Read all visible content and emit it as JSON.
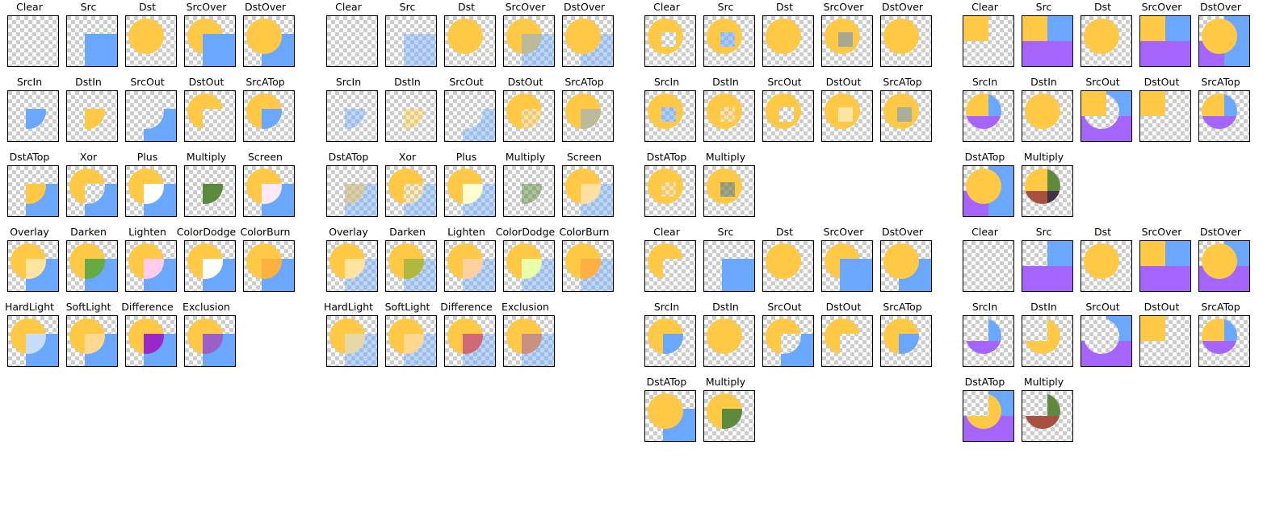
{
  "colors": {
    "dst_circle": "#FFC845",
    "src_square": "#6AA8FF",
    "purple": "#A664FF",
    "checker_light": "#FFFFFF",
    "checker_dark": "#CCCCCC",
    "border": "#000000"
  },
  "panels": [
    {
      "id": "panel-1",
      "labels": [
        "Clear",
        "Src",
        "Dst",
        "SrcOver",
        "DstOver",
        "SrcIn",
        "DstIn",
        "SrcOut",
        "DstOut",
        "SrcATop",
        "DstATop",
        "Xor",
        "Plus",
        "Multiply",
        "Screen",
        "Overlay",
        "Darken",
        "Lighten",
        "ColorDodge",
        "ColorBurn",
        "HardLight",
        "SoftLight",
        "Difference",
        "Exclusion"
      ]
    },
    {
      "id": "panel-2",
      "labels": [
        "Clear",
        "Src",
        "Dst",
        "SrcOver",
        "DstOver",
        "SrcIn",
        "DstIn",
        "SrcOut",
        "DstOut",
        "SrcATop",
        "DstATop",
        "Xor",
        "Plus",
        "Multiply",
        "Screen",
        "Overlay",
        "Darken",
        "Lighten",
        "ColorDodge",
        "ColorBurn",
        "HardLight",
        "SoftLight",
        "Difference",
        "Exclusion"
      ]
    },
    {
      "id": "panel-3a",
      "labels": [
        "Clear",
        "Src",
        "Dst",
        "SrcOver",
        "DstOver",
        "SrcIn",
        "DstIn",
        "SrcOut",
        "DstOut",
        "SrcATop",
        "DstATop",
        "Multiply"
      ]
    },
    {
      "id": "panel-3b",
      "labels": [
        "Clear",
        "Src",
        "Dst",
        "SrcOver",
        "DstOver",
        "SrcIn",
        "DstIn",
        "SrcOut",
        "DstOut",
        "SrcATop",
        "DstATop",
        "Multiply"
      ]
    },
    {
      "id": "panel-4a",
      "labels": [
        "Clear",
        "Src",
        "Dst",
        "SrcOver",
        "DstOver",
        "SrcIn",
        "DstIn",
        "SrcOut",
        "DstOut",
        "SrcATop",
        "DstATop",
        "Multiply"
      ]
    },
    {
      "id": "panel-4b",
      "labels": [
        "Clear",
        "Src",
        "Dst",
        "SrcOver",
        "DstOver",
        "SrcIn",
        "DstIn",
        "SrcOut",
        "DstOut",
        "SrcATop",
        "DstATop",
        "Multiply"
      ]
    }
  ]
}
